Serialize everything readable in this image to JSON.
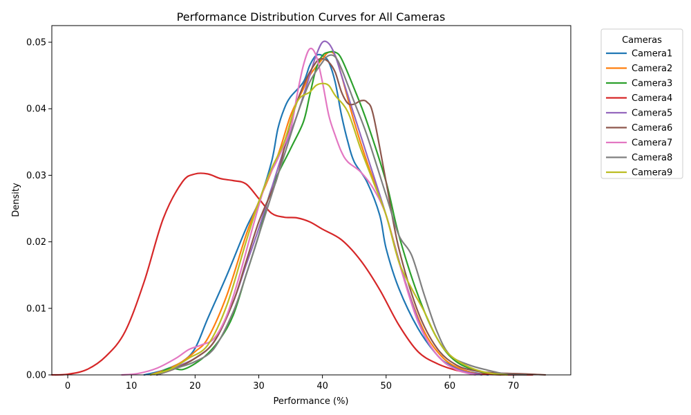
{
  "chart_data": {
    "type": "line",
    "title": "Performance Distribution Curves for All Cameras",
    "xlabel": "Performance (%)",
    "ylabel": "Density",
    "xlim": [
      -2.5,
      79
    ],
    "ylim": [
      0,
      0.0525
    ],
    "xticks": [
      0,
      10,
      20,
      30,
      40,
      50,
      60,
      70
    ],
    "xtick_labels": [
      "0",
      "10",
      "20",
      "30",
      "40",
      "50",
      "60",
      "70"
    ],
    "yticks": [
      0,
      0.01,
      0.02,
      0.03,
      0.04,
      0.05
    ],
    "ytick_labels": [
      "0.00",
      "0.01",
      "0.02",
      "0.03",
      "0.04",
      "0.05"
    ],
    "grid": false,
    "legend": {
      "title": "Cameras",
      "placement": "outside-top-right"
    },
    "series": [
      {
        "name": "Camera1",
        "color": "#1f77b4",
        "x": [
          12,
          15,
          18,
          20,
          22,
          25,
          28,
          30,
          32,
          33,
          34,
          35,
          37,
          38,
          39,
          40,
          41,
          42,
          43,
          44,
          45,
          47,
          49,
          50,
          52,
          55,
          58,
          60,
          63,
          66
        ],
        "y": [
          0,
          0.0007,
          0.002,
          0.004,
          0.0085,
          0.015,
          0.022,
          0.026,
          0.032,
          0.037,
          0.04,
          0.0418,
          0.044,
          0.0465,
          0.048,
          0.048,
          0.047,
          0.044,
          0.039,
          0.035,
          0.032,
          0.029,
          0.024,
          0.019,
          0.013,
          0.007,
          0.003,
          0.0015,
          0.0005,
          0
        ]
      },
      {
        "name": "Camera2",
        "color": "#ff7f0e",
        "x": [
          13,
          16,
          18,
          20,
          22,
          25,
          28,
          30,
          33,
          35,
          37,
          38,
          40,
          41,
          42,
          43,
          45,
          47,
          50,
          53,
          56,
          59,
          62,
          65
        ],
        "y": [
          0,
          0.001,
          0.002,
          0.0035,
          0.0055,
          0.012,
          0.021,
          0.026,
          0.033,
          0.039,
          0.043,
          0.045,
          0.0475,
          0.0485,
          0.048,
          0.045,
          0.038,
          0.032,
          0.024,
          0.014,
          0.0065,
          0.0025,
          0.0008,
          0
        ]
      },
      {
        "name": "Camera3",
        "color": "#2ca02c",
        "x": [
          14,
          16,
          18,
          20,
          22,
          24,
          26,
          28,
          30,
          32,
          35,
          37,
          38,
          39,
          40,
          41,
          42,
          43,
          45,
          47,
          50,
          52,
          55,
          58,
          61,
          65,
          68
        ],
        "y": [
          0,
          0.001,
          0.0008,
          0.0017,
          0.0032,
          0.0055,
          0.009,
          0.015,
          0.021,
          0.028,
          0.034,
          0.038,
          0.042,
          0.046,
          0.048,
          0.0485,
          0.0485,
          0.0475,
          0.043,
          0.038,
          0.029,
          0.021,
          0.012,
          0.0055,
          0.002,
          0.0004,
          0
        ]
      },
      {
        "name": "Camera4",
        "color": "#d62728",
        "x": [
          -2.5,
          0,
          3,
          6,
          9,
          12,
          15,
          18,
          20,
          22,
          24,
          26,
          28,
          30,
          32,
          34,
          36,
          38,
          40,
          43,
          46,
          49,
          52,
          55,
          58,
          61,
          64,
          67,
          70,
          73
        ],
        "y": [
          0,
          0.0001,
          0.0008,
          0.0028,
          0.0065,
          0.014,
          0.0235,
          0.029,
          0.0302,
          0.0302,
          0.0295,
          0.0292,
          0.0287,
          0.0265,
          0.0243,
          0.0237,
          0.0236,
          0.023,
          0.0219,
          0.0203,
          0.0172,
          0.0128,
          0.0075,
          0.0035,
          0.0017,
          0.0007,
          0.0002,
          5e-05,
          0,
          0
        ]
      },
      {
        "name": "Camera5",
        "color": "#9467bd",
        "x": [
          14,
          17,
          20,
          23,
          26,
          28,
          30,
          32,
          34,
          36,
          38,
          39,
          40,
          41,
          42,
          43,
          45,
          47,
          50,
          53,
          56,
          59,
          62,
          65
        ],
        "y": [
          0,
          0.0012,
          0.0025,
          0.005,
          0.011,
          0.0165,
          0.022,
          0.028,
          0.034,
          0.039,
          0.045,
          0.048,
          0.05,
          0.0498,
          0.048,
          0.045,
          0.039,
          0.033,
          0.024,
          0.014,
          0.006,
          0.002,
          0.0006,
          0
        ]
      },
      {
        "name": "Camera6",
        "color": "#8c564b",
        "x": [
          14,
          17,
          20,
          23,
          26,
          28,
          30,
          32,
          33,
          35,
          37,
          39,
          40,
          41,
          42,
          43,
          44,
          45,
          46,
          47,
          48,
          50,
          52,
          55,
          58,
          61,
          64,
          67,
          70,
          73,
          75
        ],
        "y": [
          0,
          0.001,
          0.0025,
          0.005,
          0.011,
          0.017,
          0.023,
          0.0275,
          0.03,
          0.038,
          0.0435,
          0.047,
          0.0475,
          0.047,
          0.0455,
          0.0425,
          0.0408,
          0.0407,
          0.0412,
          0.041,
          0.039,
          0.029,
          0.019,
          0.0095,
          0.004,
          0.0015,
          0.0006,
          0.0003,
          0.0002,
          0.0001,
          0
        ]
      },
      {
        "name": "Camera7",
        "color": "#e377c2",
        "x": [
          8.5,
          11,
          14,
          17,
          19,
          21,
          23,
          25,
          27,
          29,
          31,
          33,
          35,
          36,
          37,
          38,
          39,
          40,
          41,
          42,
          43,
          44,
          46,
          48,
          50,
          52,
          55,
          58,
          61,
          64
        ],
        "y": [
          0,
          0.0002,
          0.001,
          0.0025,
          0.0038,
          0.0045,
          0.0055,
          0.009,
          0.015,
          0.022,
          0.0285,
          0.0325,
          0.037,
          0.042,
          0.0465,
          0.049,
          0.048,
          0.044,
          0.039,
          0.036,
          0.0335,
          0.032,
          0.0305,
          0.028,
          0.024,
          0.017,
          0.008,
          0.003,
          0.0008,
          0
        ]
      },
      {
        "name": "Camera8",
        "color": "#7f7f7f",
        "x": [
          14,
          17,
          20,
          23,
          26,
          28,
          30,
          32,
          34,
          36,
          38,
          40,
          41,
          42,
          43,
          45,
          47,
          50,
          52,
          54,
          56,
          58,
          60,
          63,
          66,
          69,
          72
        ],
        "y": [
          0,
          0.001,
          0.002,
          0.004,
          0.0095,
          0.015,
          0.021,
          0.027,
          0.033,
          0.039,
          0.044,
          0.047,
          0.048,
          0.0478,
          0.046,
          0.041,
          0.036,
          0.027,
          0.021,
          0.018,
          0.012,
          0.0065,
          0.003,
          0.0015,
          0.0007,
          0.0001,
          0
        ]
      },
      {
        "name": "Camera9",
        "color": "#bcbd22",
        "x": [
          13,
          16,
          19,
          22,
          25,
          28,
          30,
          32,
          34,
          36,
          38,
          39,
          40,
          41,
          42,
          44,
          46,
          48,
          50,
          52,
          54,
          56,
          58,
          60,
          63,
          66,
          69
        ],
        "y": [
          0,
          0.0008,
          0.0025,
          0.0045,
          0.0105,
          0.02,
          0.026,
          0.031,
          0.035,
          0.041,
          0.0425,
          0.0435,
          0.0438,
          0.0435,
          0.042,
          0.0395,
          0.034,
          0.029,
          0.024,
          0.017,
          0.013,
          0.0095,
          0.0055,
          0.003,
          0.0012,
          0.0003,
          0
        ]
      }
    ]
  }
}
